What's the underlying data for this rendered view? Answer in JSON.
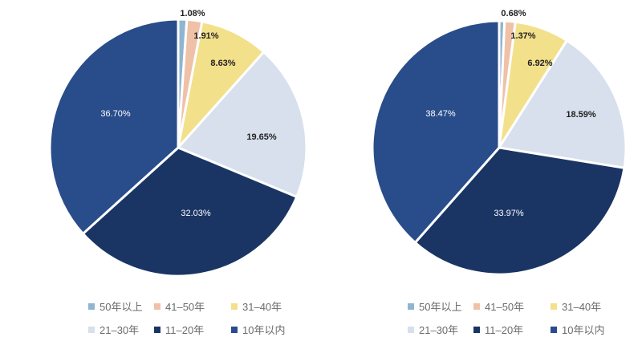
{
  "legend": [
    {
      "label": "50年以上",
      "color": "#8fb5d0"
    },
    {
      "label": "41–50年",
      "color": "#efc1a7"
    },
    {
      "label": "31–40年",
      "color": "#f3e08b"
    },
    {
      "label": "21–30年",
      "color": "#d7e0ec"
    },
    {
      "label": "11–20年",
      "color": "#1a3564"
    },
    {
      "label": "10年以内",
      "color": "#294c8a"
    }
  ],
  "chart_data": [
    {
      "type": "pie",
      "title": "",
      "start_angle_deg": 0,
      "direction": "clockwise",
      "slices": [
        {
          "label": "50年以上",
          "value": 1.08,
          "display": "1.08%",
          "color": "#8fb5d0"
        },
        {
          "label": "41–50年",
          "value": 1.91,
          "display": "1.91%",
          "color": "#efc1a7"
        },
        {
          "label": "31–40年",
          "value": 8.63,
          "display": "8.63%",
          "color": "#f3e08b"
        },
        {
          "label": "21–30年",
          "value": 19.65,
          "display": "19.65%",
          "color": "#d7e0ec"
        },
        {
          "label": "11–20年",
          "value": 32.03,
          "display": "32.03%",
          "color": "#1a3564"
        },
        {
          "label": "10年以内",
          "value": 36.7,
          "display": "36.70%",
          "color": "#294c8a"
        }
      ]
    },
    {
      "type": "pie",
      "title": "",
      "start_angle_deg": 0,
      "direction": "clockwise",
      "slices": [
        {
          "label": "50年以上",
          "value": 0.68,
          "display": "0.68%",
          "color": "#8fb5d0"
        },
        {
          "label": "41–50年",
          "value": 1.37,
          "display": "1.37%",
          "color": "#efc1a7"
        },
        {
          "label": "31–40年",
          "value": 6.92,
          "display": "6.92%",
          "color": "#f3e08b"
        },
        {
          "label": "21–30年",
          "value": 18.59,
          "display": "18.59%",
          "color": "#d7e0ec"
        },
        {
          "label": "11–20年",
          "value": 33.97,
          "display": "33.97%",
          "color": "#1a3564"
        },
        {
          "label": "10年以内",
          "value": 38.47,
          "display": "38.47%",
          "color": "#294c8a"
        }
      ]
    }
  ]
}
